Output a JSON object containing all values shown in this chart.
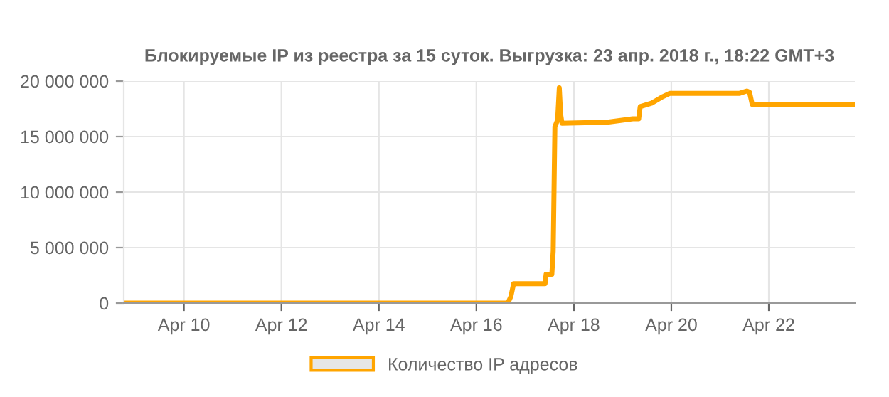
{
  "chart_data": {
    "type": "line",
    "title": "Блокируемые IP из реестра за 15 суток. Выгрузка: 23 апр. 2018 г., 18:22 GMT+3",
    "x": [
      "2018-04-08T18:37",
      "2018-04-16T15:30",
      "2018-04-16T17:00",
      "2018-04-16T18:20",
      "2018-04-17T09:50",
      "2018-04-17T10:20",
      "2018-04-17T13:10",
      "2018-04-17T13:50",
      "2018-04-17T14:40",
      "2018-04-17T16:00",
      "2018-04-17T16:50",
      "2018-04-17T17:30",
      "2018-04-17T18:10",
      "2018-04-18T16:30",
      "2018-04-19T05:00",
      "2018-04-19T07:55",
      "2018-04-19T08:40",
      "2018-04-19T14:10",
      "2018-04-19T19:50",
      "2018-04-19T23:20",
      "2018-04-21T09:40",
      "2018-04-21T13:10",
      "2018-04-21T14:30",
      "2018-04-21T15:50",
      "2018-04-23T18:15"
    ],
    "series": [
      {
        "name": "Количество IP адресов",
        "color": "#ffa500",
        "values": [
          0,
          0,
          600000,
          1750000,
          1750000,
          2600000,
          2600000,
          4700000,
          15900000,
          16500000,
          19400000,
          17000000,
          16200000,
          16300000,
          16600000,
          16600000,
          17700000,
          18000000,
          18600000,
          18900000,
          18900000,
          19100000,
          19000000,
          17900000,
          17900000
        ]
      }
    ],
    "xlim": [
      "2018-04-08T18:22",
      "2018-04-23T18:22"
    ],
    "xticks": [
      {
        "value": "2018-04-10",
        "label": "Apr 10"
      },
      {
        "value": "2018-04-12",
        "label": "Apr 12"
      },
      {
        "value": "2018-04-14",
        "label": "Apr 14"
      },
      {
        "value": "2018-04-16",
        "label": "Apr 16"
      },
      {
        "value": "2018-04-18",
        "label": "Apr 18"
      },
      {
        "value": "2018-04-20",
        "label": "Apr 20"
      },
      {
        "value": "2018-04-22",
        "label": "Apr 22"
      }
    ],
    "ylim": [
      0,
      20000000
    ],
    "yticks": [
      0,
      {
        "value": 5000000,
        "label": "5 000 000"
      },
      {
        "value": 10000000,
        "label": "10 000 000"
      },
      {
        "value": 15000000,
        "label": "15 000 000"
      },
      {
        "value": 20000000,
        "label": "20 000 000"
      }
    ],
    "grid": true,
    "legend": "bottom",
    "marker": "none",
    "line_style": "solid"
  }
}
